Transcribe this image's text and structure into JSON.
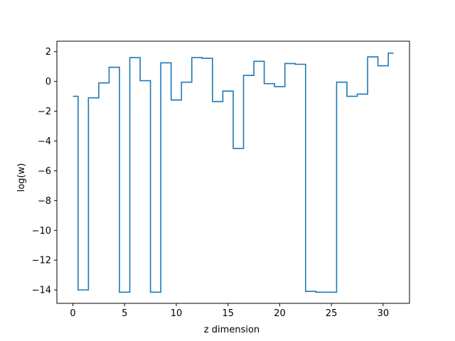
{
  "chart_data": {
    "type": "line",
    "drawstyle": "steps-mid",
    "title": "",
    "xlabel": "z dimension",
    "ylabel": "log(w)",
    "xlim": [
      -1.55,
      32.55
    ],
    "ylim": [
      -14.9,
      2.7
    ],
    "x_ticks": [
      0,
      5,
      10,
      15,
      20,
      25,
      30
    ],
    "y_ticks": [
      -14,
      -12,
      -10,
      -8,
      -6,
      -4,
      -2,
      0,
      2
    ],
    "grid": false,
    "legend": "none",
    "series": [
      {
        "color": "#1f77b4",
        "x": [
          0,
          1,
          2,
          3,
          4,
          5,
          6,
          7,
          8,
          9,
          10,
          11,
          12,
          13,
          14,
          15,
          16,
          17,
          18,
          19,
          20,
          21,
          22,
          23,
          24,
          25,
          26,
          27,
          28,
          29,
          30,
          31
        ],
        "y": [
          -1.0,
          -14.0,
          -1.1,
          -0.1,
          0.95,
          -14.15,
          1.6,
          0.05,
          -14.15,
          1.25,
          -1.25,
          -0.05,
          1.6,
          1.55,
          -1.35,
          -0.65,
          -4.5,
          0.4,
          1.35,
          -0.15,
          -0.35,
          1.2,
          1.15,
          -14.1,
          -14.15,
          -14.15,
          -0.05,
          -1.0,
          -0.85,
          1.65,
          1.05,
          1.9
        ]
      }
    ]
  }
}
